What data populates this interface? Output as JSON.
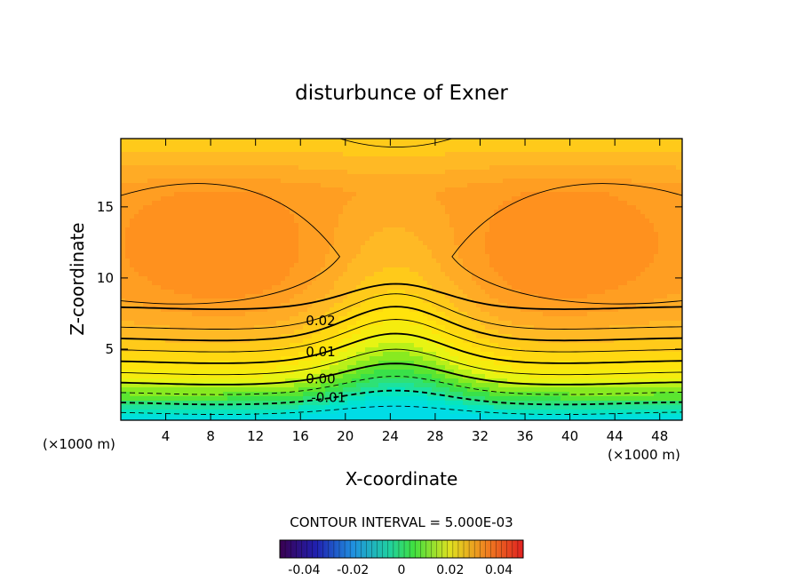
{
  "chart_data": {
    "type": "contour",
    "title": "disturbunce of Exner",
    "xlabel": "X-coordinate",
    "ylabel": "Z-coordinate",
    "x_unit": "(×1000 m)",
    "y_unit": "(×1000 m)",
    "xlim": [
      0,
      50
    ],
    "ylim": [
      0,
      19.8
    ],
    "x_ticks": [
      4,
      8,
      12,
      16,
      20,
      24,
      28,
      32,
      36,
      40,
      44,
      48
    ],
    "y_ticks": [
      5,
      10,
      15
    ],
    "contour_labels": [
      {
        "text": "0.02",
        "x": 17.8,
        "z": 7.0
      },
      {
        "text": "0.01",
        "x": 17.8,
        "z": 4.8
      },
      {
        "text": "0.00",
        "x": 17.8,
        "z": 2.9
      },
      {
        "text": "-0.01",
        "x": 18.5,
        "z": 1.6
      }
    ],
    "contour_interval_text": "CONTOUR INTERVAL = 5.000E-03",
    "colorbar": {
      "min": -0.05,
      "max": 0.05,
      "tick_labels": [
        "-0.04",
        "-0.02",
        "0",
        "0.02",
        "0.04"
      ],
      "tick_values": [
        -0.04,
        -0.02,
        0,
        0.02,
        0.04
      ]
    },
    "grid": false
  }
}
